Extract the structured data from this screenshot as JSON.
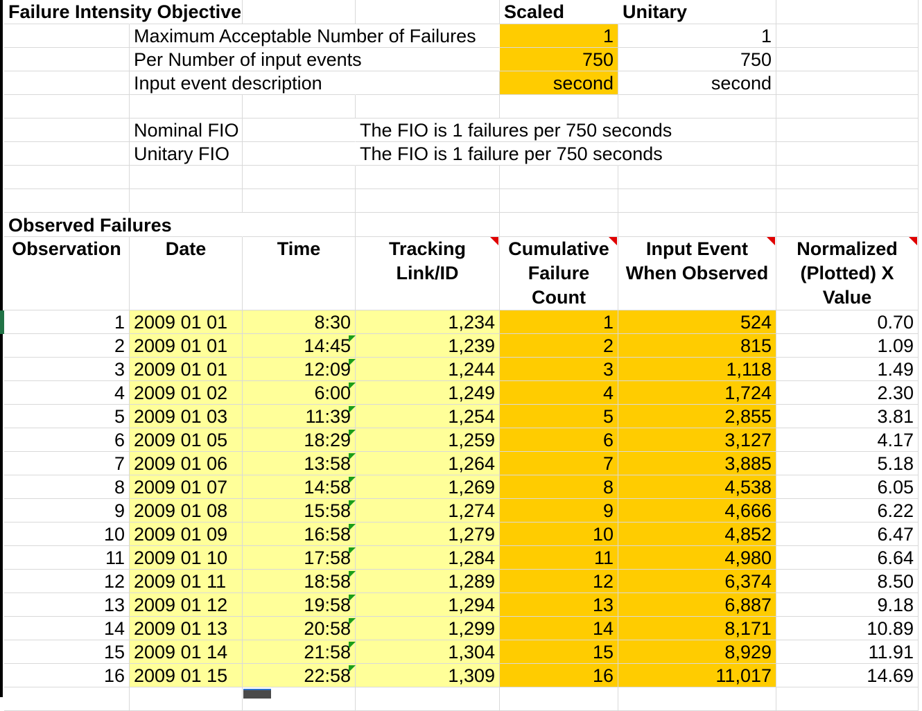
{
  "fio_section": {
    "title": "Failure Intensity Objective",
    "col_scaled": "Scaled",
    "col_unitary": "Unitary",
    "rows": [
      {
        "label": "Maximum Acceptable Number of Failures",
        "scaled": "1",
        "unitary": "1"
      },
      {
        "label": "Per Number of input events",
        "scaled": "750",
        "unitary": "750"
      },
      {
        "label": "Input event description",
        "scaled": "second",
        "unitary": "second"
      }
    ],
    "nominal_label": "Nominal FIO",
    "nominal_text": "The FIO is 1 failures per 750 seconds",
    "unitary_label": "Unitary FIO",
    "unitary_text": "The FIO is 1 failure per 750 seconds"
  },
  "observed": {
    "title": "Observed Failures",
    "headers": {
      "observation": "Observation",
      "date": "Date",
      "time": "Time",
      "tracking_1": "Tracking",
      "tracking_2": "Link/ID",
      "cumulative_1": "Cumulative",
      "cumulative_2": "Failure",
      "cumulative_3": "Count",
      "input_1": "Input Event",
      "input_2": "When Observed",
      "normalized_1": "Normalized",
      "normalized_2": "(Plotted) X",
      "normalized_3": "Value"
    },
    "rows": [
      {
        "obs": "1",
        "date": "2009 01 01",
        "time": "8:30",
        "track": "1,234",
        "cum": "1",
        "input": "524",
        "norm": "0.70"
      },
      {
        "obs": "2",
        "date": "2009 01 01",
        "time": "14:45",
        "track": "1,239",
        "cum": "2",
        "input": "815",
        "norm": "1.09"
      },
      {
        "obs": "3",
        "date": "2009 01 01",
        "time": "12:09",
        "track": "1,244",
        "cum": "3",
        "input": "1,118",
        "norm": "1.49"
      },
      {
        "obs": "4",
        "date": "2009 01 02",
        "time": "6:00",
        "track": "1,249",
        "cum": "4",
        "input": "1,724",
        "norm": "2.30"
      },
      {
        "obs": "5",
        "date": "2009 01 03",
        "time": "11:39",
        "track": "1,254",
        "cum": "5",
        "input": "2,855",
        "norm": "3.81"
      },
      {
        "obs": "6",
        "date": "2009 01 05",
        "time": "18:29",
        "track": "1,259",
        "cum": "6",
        "input": "3,127",
        "norm": "4.17"
      },
      {
        "obs": "7",
        "date": "2009 01 06",
        "time": "13:58",
        "track": "1,264",
        "cum": "7",
        "input": "3,885",
        "norm": "5.18"
      },
      {
        "obs": "8",
        "date": "2009 01 07",
        "time": "14:58",
        "track": "1,269",
        "cum": "8",
        "input": "4,538",
        "norm": "6.05"
      },
      {
        "obs": "9",
        "date": "2009 01 08",
        "time": "15:58",
        "track": "1,274",
        "cum": "9",
        "input": "4,666",
        "norm": "6.22"
      },
      {
        "obs": "10",
        "date": "2009 01 09",
        "time": "16:58",
        "track": "1,279",
        "cum": "10",
        "input": "4,852",
        "norm": "6.47"
      },
      {
        "obs": "11",
        "date": "2009 01 10",
        "time": "17:58",
        "track": "1,284",
        "cum": "11",
        "input": "4,980",
        "norm": "6.64"
      },
      {
        "obs": "12",
        "date": "2009 01 11",
        "time": "18:58",
        "track": "1,289",
        "cum": "12",
        "input": "6,374",
        "norm": "8.50"
      },
      {
        "obs": "13",
        "date": "2009 01 12",
        "time": "19:58",
        "track": "1,294",
        "cum": "13",
        "input": "6,887",
        "norm": "9.18"
      },
      {
        "obs": "14",
        "date": "2009 01 13",
        "time": "20:58",
        "track": "1,299",
        "cum": "14",
        "input": "8,171",
        "norm": "10.89"
      },
      {
        "obs": "15",
        "date": "2009 01 14",
        "time": "21:58",
        "track": "1,304",
        "cum": "15",
        "input": "8,929",
        "norm": "11.91"
      },
      {
        "obs": "16",
        "date": "2009 01 15",
        "time": "22:58",
        "track": "1,309",
        "cum": "16",
        "input": "11,017",
        "norm": "14.69"
      }
    ]
  },
  "colors": {
    "input_yellow": "#ffff99",
    "highlight_gold": "#ffcc00",
    "comment_marker": "#e00000",
    "error_marker": "#1a9e1a",
    "gridline": "#d9d9d9"
  }
}
